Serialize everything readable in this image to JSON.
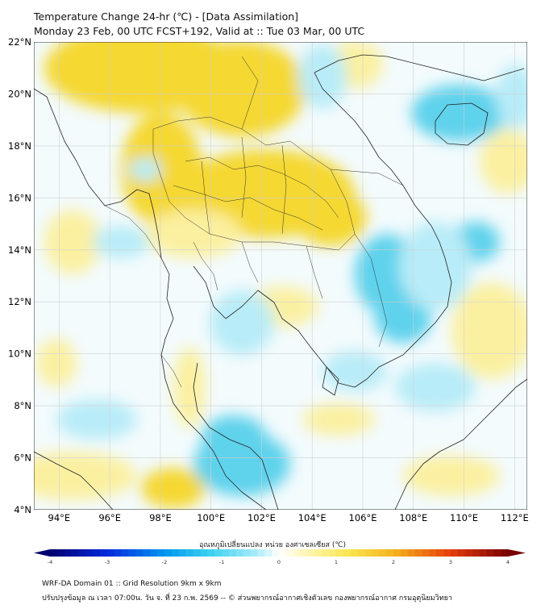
{
  "header": {
    "title_line1": "Temperature Change 24-hr (℃) - [Data Assimilation]",
    "title_line2": "Monday 23 Feb, 00 UTC FCST+192, Valid at :: Tue 03 Mar, 00 UTC"
  },
  "map": {
    "lat_labels": [
      "22°N",
      "20°N",
      "18°N",
      "16°N",
      "14°N",
      "12°N",
      "10°N",
      "8°N",
      "6°N",
      "4°N"
    ],
    "lon_labels": [
      "94°E",
      "96°E",
      "98°E",
      "100°E",
      "102°E",
      "104°E",
      "106°E",
      "108°E",
      "110°E",
      "112°E"
    ],
    "lat_range": [
      4,
      22
    ],
    "lon_range": [
      93,
      112.5
    ],
    "colors": {
      "warm": "#f5d832",
      "warm_light": "#fbf0a0",
      "cool": "#5fd2ec",
      "cool_light": "#b8ecf8",
      "border": "#222222",
      "grid": "#d0d0d0"
    }
  },
  "colorbar": {
    "label": "อุณหภูมิเปลี่ยนแปลง หน่วย องศาเซลเซียส (℃)",
    "ticks": [
      "-4",
      "-3",
      "-2",
      "-1",
      "0",
      "1",
      "2",
      "3",
      "4"
    ],
    "tick_values": [
      -4,
      -3,
      -2,
      -1,
      0,
      1,
      2,
      3,
      4
    ]
  },
  "footer": {
    "line1": "WRF-DA Domain 01 :: Grid Resolution 9km x 9km",
    "line2": "ปรับปรุงข้อมูล ณ เวลา 07:00น. วัน จ. ที่ 23 ก.พ. 2569 -- © ส่วนพยากรณ์อากาศเชิงตัวเลข กองพยากรณ์อากาศ กรมอุตุนิยมวิทยา"
  }
}
